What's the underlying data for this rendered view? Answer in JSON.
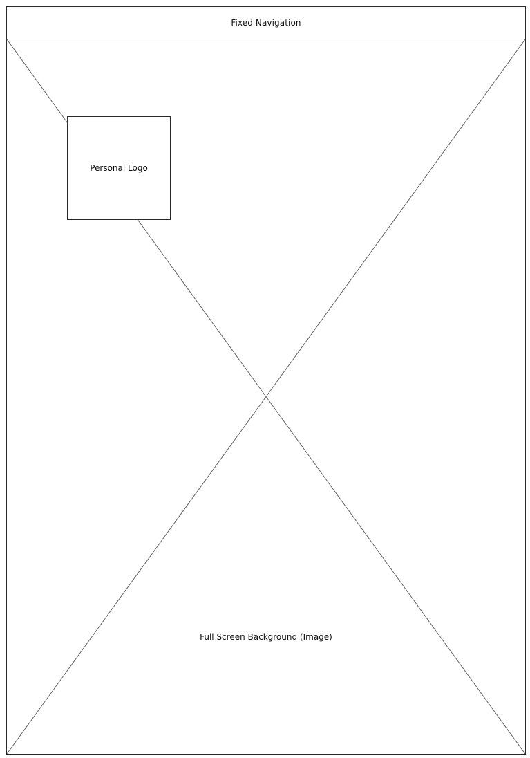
{
  "navigation": {
    "label": "Fixed Navigation"
  },
  "logo": {
    "label": "Personal Logo"
  },
  "background": {
    "label": "Full Screen Background (Image)"
  },
  "colors": {
    "border": "#2a2a2a",
    "cross_lines": "#555555",
    "background": "#ffffff"
  }
}
